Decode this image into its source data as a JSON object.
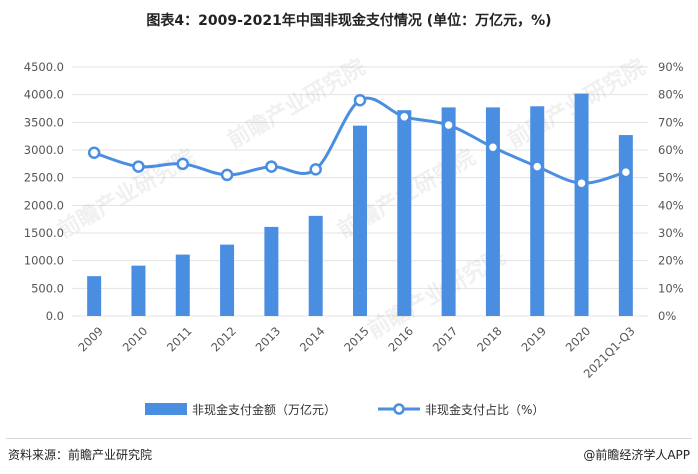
{
  "title": "图表4：2009-2021年中国非现金支付情况 (单位：万亿元，%)",
  "source": "资料来源：前瞻产业研究院",
  "credit": "@前瞻经济学人APP",
  "watermark": "前瞻产业研究院",
  "colors": {
    "bar": "#4a8ee2",
    "line": "#4a8ee2",
    "grid": "#e3e3e3",
    "text": "#555555"
  },
  "chart_data": {
    "type": "bar",
    "categories": [
      "2009",
      "2010",
      "2011",
      "2012",
      "2013",
      "2014",
      "2015",
      "2016",
      "2017",
      "2018",
      "2019",
      "2020",
      "2021Q1-Q3"
    ],
    "series": [
      {
        "name": "非现金支付金额（万亿元）",
        "type": "bar",
        "axis": "left",
        "values": [
          720,
          910,
          1110,
          1290,
          1610,
          1810,
          3440,
          3720,
          3770,
          3770,
          3790,
          4020,
          3270
        ]
      },
      {
        "name": "非现金支付占比（%）",
        "type": "line",
        "axis": "right",
        "values": [
          59,
          54,
          55,
          51,
          54,
          53,
          78,
          72,
          69,
          61,
          54,
          48,
          52
        ]
      }
    ],
    "y_left": {
      "ticks": [
        "0.0",
        "500.0",
        "1000.0",
        "1500.0",
        "2000.0",
        "2500.0",
        "3000.0",
        "3500.0",
        "4000.0",
        "4500.0"
      ],
      "ylim": [
        0,
        4500
      ]
    },
    "y_right": {
      "ticks": [
        "0%",
        "10%",
        "20%",
        "30%",
        "40%",
        "50%",
        "60%",
        "70%",
        "80%",
        "90%"
      ],
      "ylim": [
        0,
        90
      ]
    },
    "grid": true,
    "legend": "bottom"
  }
}
